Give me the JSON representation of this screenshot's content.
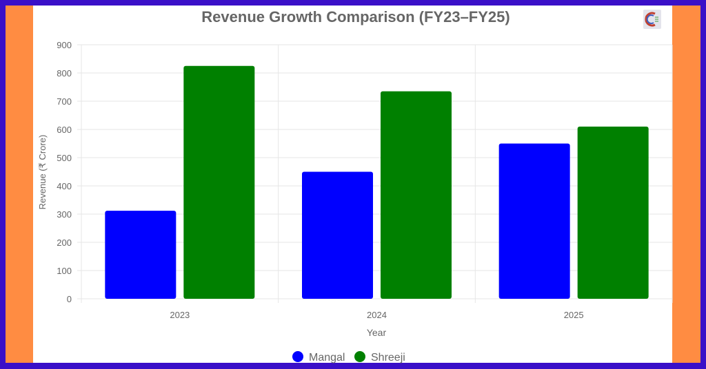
{
  "chart_data": {
    "type": "bar",
    "title": "Revenue Growth Comparison (FY23–FY25)",
    "xlabel": "Year",
    "ylabel": "Revenue (₹ Crore)",
    "categories": [
      "2023",
      "2024",
      "2025"
    ],
    "series": [
      {
        "name": "Mangal",
        "values": [
          312,
          450,
          550
        ],
        "color": "#0000ff"
      },
      {
        "name": "Shreeji",
        "values": [
          825,
          735,
          610
        ],
        "color": "#008000"
      }
    ],
    "ylim": [
      0,
      900
    ],
    "yticks": [
      0,
      100,
      200,
      300,
      400,
      500,
      600,
      700,
      800,
      900
    ],
    "grid": true,
    "legend": "bottom"
  },
  "colors": {
    "frame": "#3a10c8",
    "sides": "#ff8c42"
  }
}
